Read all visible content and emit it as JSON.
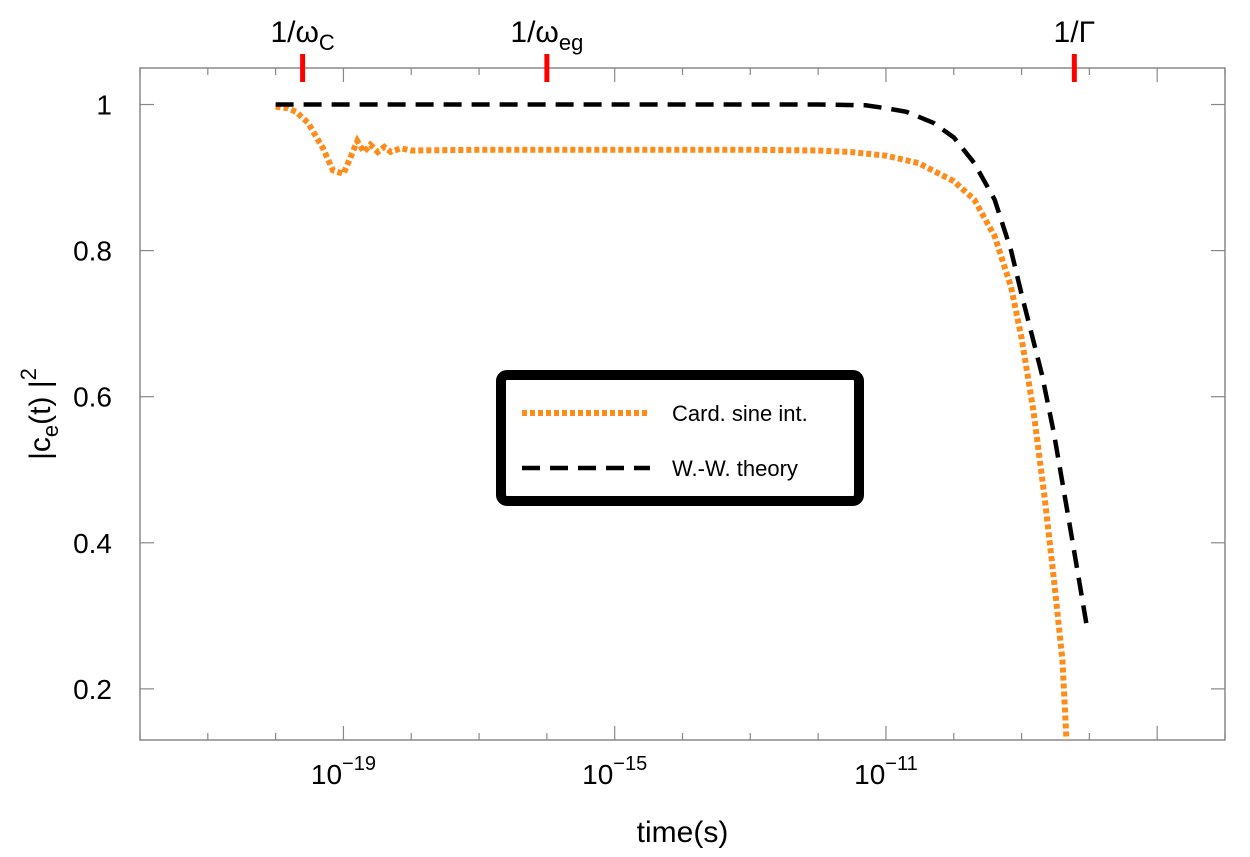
{
  "chart_data": {
    "type": "line",
    "xscale": "log",
    "xlim": [
      1e-22,
      1e-06
    ],
    "ylim": [
      0.13,
      1.05
    ],
    "xlabel": "time(s)",
    "ylabel": "|c_e(t)|^2",
    "x_ticks": [
      {
        "value": 1e-19,
        "base": "10",
        "exp": "−19"
      },
      {
        "value": 1e-15,
        "base": "10",
        "exp": "−15"
      },
      {
        "value": 1e-11,
        "base": "10",
        "exp": "−11"
      }
    ],
    "y_ticks": [
      {
        "value": 0.2,
        "label": "0.2"
      },
      {
        "value": 0.4,
        "label": "0.4"
      },
      {
        "value": 0.6,
        "label": "0.6"
      },
      {
        "value": 0.8,
        "label": "0.8"
      },
      {
        "value": 1.0,
        "label": "1"
      }
    ],
    "markers": [
      {
        "x": 2.5e-20,
        "label_main": "1/ω",
        "label_sub": "C"
      },
      {
        "x": 1e-16,
        "label_main": "1/ω",
        "label_sub": "eg"
      },
      {
        "x": 6e-09,
        "label_main": "1/Γ",
        "label_sub": ""
      }
    ],
    "legend_position": "center",
    "series": [
      {
        "name": "Card. sine int.",
        "color": "#ff8c1a",
        "style": "dotted",
        "points": [
          [
            1e-20,
            0.997
          ],
          [
            1.5e-20,
            0.995
          ],
          [
            2e-20,
            0.99
          ],
          [
            3e-20,
            0.975
          ],
          [
            5e-20,
            0.94
          ],
          [
            7e-20,
            0.91
          ],
          [
            1e-19,
            0.905
          ],
          [
            1.3e-19,
            0.93
          ],
          [
            1.6e-19,
            0.95
          ],
          [
            2e-19,
            0.935
          ],
          [
            2.5e-19,
            0.945
          ],
          [
            3.2e-19,
            0.935
          ],
          [
            4e-19,
            0.942
          ],
          [
            5e-19,
            0.935
          ],
          [
            7e-19,
            0.94
          ],
          [
            1e-18,
            0.937
          ],
          [
            1e-17,
            0.938
          ],
          [
            1e-16,
            0.938
          ],
          [
            1e-15,
            0.938
          ],
          [
            1e-14,
            0.938
          ],
          [
            1e-13,
            0.938
          ],
          [
            1e-12,
            0.937
          ],
          [
            3e-12,
            0.935
          ],
          [
            1e-11,
            0.93
          ],
          [
            3e-11,
            0.92
          ],
          [
            1e-10,
            0.895
          ],
          [
            2e-10,
            0.87
          ],
          [
            4e-10,
            0.82
          ],
          [
            7e-10,
            0.75
          ],
          [
            1e-09,
            0.68
          ],
          [
            1.5e-09,
            0.58
          ],
          [
            2.2e-09,
            0.46
          ],
          [
            3e-09,
            0.35
          ],
          [
            4e-09,
            0.24
          ],
          [
            4.6e-09,
            0.13
          ]
        ]
      },
      {
        "name": "W.-W. theory",
        "color": "#000000",
        "style": "dashed",
        "points": [
          [
            1e-20,
            1.0
          ],
          [
            1e-18,
            1.0
          ],
          [
            1e-16,
            1.0
          ],
          [
            1e-14,
            1.0
          ],
          [
            1e-12,
            1.0
          ],
          [
            5e-12,
            0.999
          ],
          [
            1e-11,
            0.995
          ],
          [
            2e-11,
            0.99
          ],
          [
            5e-11,
            0.975
          ],
          [
            1e-10,
            0.955
          ],
          [
            2e-10,
            0.92
          ],
          [
            4e-10,
            0.87
          ],
          [
            7e-10,
            0.8
          ],
          [
            1e-09,
            0.74
          ],
          [
            2e-09,
            0.63
          ],
          [
            3e-09,
            0.55
          ],
          [
            5e-09,
            0.43
          ],
          [
            7e-09,
            0.35
          ],
          [
            9e-09,
            0.29
          ]
        ]
      }
    ]
  }
}
